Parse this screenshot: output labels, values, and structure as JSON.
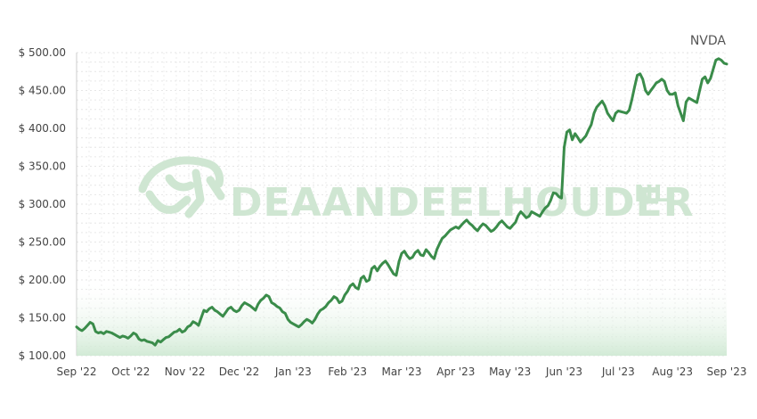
{
  "chart_data": {
    "type": "line",
    "ticker": "NVDA",
    "watermark": {
      "text_main": "DEAANDEELHOUDER",
      "text_suffix": "NL",
      "icon": "bull-icon"
    },
    "ylim": [
      100,
      500
    ],
    "y_ticks": [
      "$ 500.00",
      "$ 450.00",
      "$ 400.00",
      "$ 350.00",
      "$ 300.00",
      "$ 250.00",
      "$ 200.00",
      "$ 150.00",
      "$ 100.00"
    ],
    "y_tick_values": [
      500,
      450,
      400,
      350,
      300,
      250,
      200,
      150,
      100
    ],
    "x_ticks": [
      "Sep '22",
      "Oct '22",
      "Nov '22",
      "Dec '22",
      "Jan '23",
      "Feb '23",
      "Mar '23",
      "Apr '23",
      "May '23",
      "Jun '23",
      "Jul '23",
      "Aug '23",
      "Sep '23"
    ],
    "x_tick_positions": [
      0,
      1,
      2,
      3,
      4,
      5,
      6,
      7,
      8,
      9,
      10,
      11,
      12
    ],
    "line_color": "#3a8c4a",
    "area_color": "#d9eedc",
    "series": [
      {
        "name": "NVDA",
        "x": [
          0.0,
          0.05,
          0.1,
          0.15,
          0.2,
          0.25,
          0.3,
          0.35,
          0.4,
          0.45,
          0.5,
          0.55,
          0.6,
          0.65,
          0.7,
          0.75,
          0.8,
          0.85,
          0.9,
          0.95,
          1.0,
          1.05,
          1.1,
          1.15,
          1.2,
          1.25,
          1.3,
          1.35,
          1.4,
          1.45,
          1.5,
          1.55,
          1.6,
          1.65,
          1.7,
          1.75,
          1.8,
          1.85,
          1.9,
          1.95,
          2.0,
          2.05,
          2.1,
          2.15,
          2.2,
          2.25,
          2.3,
          2.35,
          2.4,
          2.45,
          2.5,
          2.55,
          2.6,
          2.65,
          2.7,
          2.75,
          2.8,
          2.85,
          2.9,
          2.95,
          3.0,
          3.05,
          3.1,
          3.15,
          3.2,
          3.25,
          3.3,
          3.35,
          3.4,
          3.45,
          3.5,
          3.55,
          3.6,
          3.65,
          3.7,
          3.75,
          3.8,
          3.85,
          3.9,
          3.95,
          4.0,
          4.05,
          4.1,
          4.15,
          4.2,
          4.25,
          4.3,
          4.35,
          4.4,
          4.45,
          4.5,
          4.55,
          4.6,
          4.65,
          4.7,
          4.75,
          4.8,
          4.85,
          4.9,
          4.95,
          5.0,
          5.05,
          5.1,
          5.15,
          5.2,
          5.25,
          5.3,
          5.35,
          5.4,
          5.45,
          5.5,
          5.55,
          5.6,
          5.65,
          5.7,
          5.75,
          5.8,
          5.85,
          5.9,
          5.95,
          6.0,
          6.05,
          6.1,
          6.15,
          6.2,
          6.25,
          6.3,
          6.35,
          6.4,
          6.45,
          6.5,
          6.55,
          6.6,
          6.65,
          6.7,
          6.75,
          6.8,
          6.85,
          6.9,
          6.95,
          7.0,
          7.05,
          7.1,
          7.15,
          7.2,
          7.25,
          7.3,
          7.35,
          7.4,
          7.45,
          7.5,
          7.55,
          7.6,
          7.65,
          7.7,
          7.75,
          7.8,
          7.85,
          7.9,
          7.95,
          8.0,
          8.05,
          8.1,
          8.15,
          8.2,
          8.25,
          8.3,
          8.35,
          8.4,
          8.45,
          8.5,
          8.55,
          8.6,
          8.65,
          8.7,
          8.75,
          8.8,
          8.85,
          8.9,
          8.95,
          9.0,
          9.05,
          9.1,
          9.15,
          9.2,
          9.25,
          9.3,
          9.35,
          9.4,
          9.45,
          9.5,
          9.55,
          9.6,
          9.65,
          9.7,
          9.75,
          9.8,
          9.85,
          9.9,
          9.95,
          10.0,
          10.05,
          10.1,
          10.15,
          10.2,
          10.25,
          10.3,
          10.35,
          10.4,
          10.45,
          10.5,
          10.55,
          10.6,
          10.65,
          10.7,
          10.75,
          10.8,
          10.85,
          10.9,
          10.95,
          11.0,
          11.05,
          11.1,
          11.15,
          11.2,
          11.25,
          11.3,
          11.35,
          11.4,
          11.45,
          11.5,
          11.55,
          11.6,
          11.65,
          11.7,
          11.75,
          11.8,
          11.85,
          11.9,
          11.95,
          12.0
        ],
        "values": [
          138,
          135,
          133,
          136,
          140,
          144,
          142,
          132,
          130,
          131,
          129,
          132,
          131,
          130,
          128,
          126,
          124,
          126,
          125,
          123,
          126,
          130,
          128,
          122,
          120,
          121,
          119,
          118,
          117,
          114,
          120,
          118,
          121,
          124,
          125,
          128,
          131,
          132,
          135,
          131,
          133,
          138,
          140,
          145,
          143,
          140,
          150,
          160,
          158,
          162,
          164,
          160,
          158,
          155,
          152,
          157,
          162,
          164,
          160,
          158,
          160,
          166,
          170,
          168,
          166,
          163,
          160,
          168,
          173,
          176,
          180,
          178,
          170,
          168,
          165,
          163,
          158,
          156,
          148,
          144,
          142,
          140,
          138,
          141,
          145,
          148,
          146,
          143,
          148,
          155,
          160,
          162,
          165,
          170,
          173,
          178,
          176,
          170,
          172,
          180,
          185,
          192,
          195,
          190,
          188,
          202,
          205,
          198,
          200,
          215,
          218,
          212,
          218,
          222,
          225,
          220,
          214,
          208,
          206,
          224,
          235,
          238,
          232,
          228,
          230,
          236,
          239,
          233,
          232,
          240,
          236,
          231,
          228,
          240,
          248,
          255,
          258,
          262,
          266,
          268,
          270,
          268,
          272,
          276,
          279,
          275,
          272,
          268,
          265,
          270,
          274,
          272,
          268,
          264,
          266,
          270,
          275,
          278,
          274,
          270,
          268,
          272,
          276,
          285,
          290,
          286,
          282,
          284,
          290,
          288,
          286,
          284,
          290,
          295,
          298,
          305,
          315,
          314,
          310,
          308,
          375,
          395,
          398,
          385,
          393,
          388,
          382,
          386,
          390,
          398,
          405,
          420,
          428,
          432,
          436,
          430,
          420,
          415,
          410,
          420,
          423,
          422,
          421,
          420,
          424,
          438,
          455,
          470,
          472,
          465,
          450,
          445,
          450,
          455,
          460,
          462,
          465,
          462,
          450,
          445,
          445,
          447,
          430,
          420,
          410,
          435,
          440,
          438,
          436,
          434,
          450,
          465,
          468,
          460,
          466,
          478,
          490,
          492,
          490,
          486,
          485
        ]
      }
    ]
  }
}
